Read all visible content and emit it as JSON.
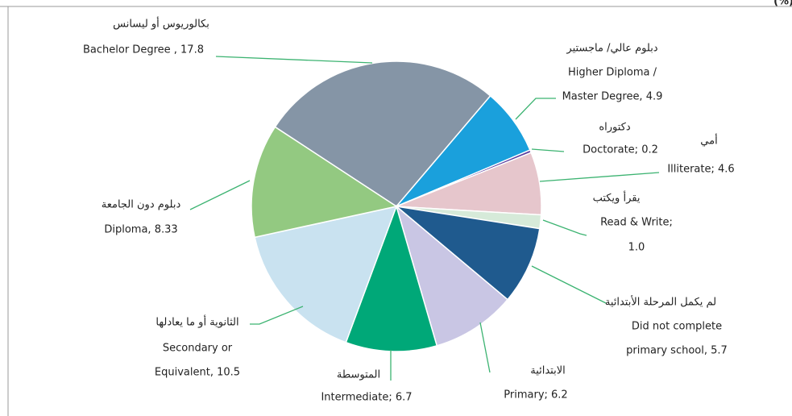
{
  "chart_data": {
    "type": "pie",
    "unit": "(%)",
    "labels": [
      [
        "بكالوريوس أو ليسانس",
        "Bachelor Degree  , 17.8"
      ],
      [
        "دبلوم عالي/ ماجستير",
        "Higher Diploma /",
        "Master Degree, 4.9"
      ],
      [
        "دكتوراه",
        "Doctorate; 0.2"
      ],
      [
        "أمي",
        "Illiterate; 4.6"
      ],
      [
        "يقرأ ويكتب",
        "Read & Write;",
        "1.0"
      ],
      [
        "لم يكمل المرحلة الأبتدائية",
        "Did not complete",
        "primary school,  5.7"
      ],
      [
        "الابتدائية",
        "Primary; 6.2"
      ],
      [
        "المتوسطة",
        "Intermediate;  6.7"
      ],
      [
        "الثانوية أو ما يعادلها",
        "Secondary or",
        "Equivalent, 10.5"
      ],
      [
        "دبلوم دون الجامعة",
        "Diploma, 8.33"
      ]
    ],
    "values": [
      17.8,
      4.9,
      0.2,
      4.6,
      1.0,
      5.7,
      6.2,
      6.7,
      10.5,
      8.33
    ],
    "colors": [
      "#8595a6",
      "#1aa0dc",
      "#5b3fa0",
      "#e6c6cc",
      "#d6ead9",
      "#1f5a8e",
      "#c9c6e4",
      "#00a878",
      "#c9e2f0",
      "#93c981"
    ]
  }
}
